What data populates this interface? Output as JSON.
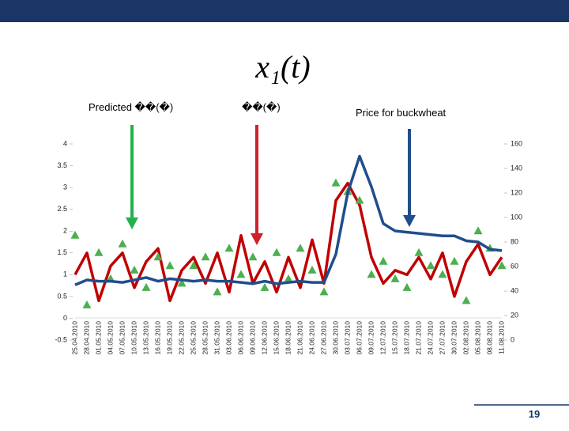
{
  "chart_data": {
    "type": "line",
    "title": "x₁(t)",
    "annotations": [
      "Predicted ��(�)",
      "��(�)",
      "Price for buckwheat"
    ],
    "page_number": "19",
    "categories": [
      "25.04.2010",
      "28.04.2010",
      "01.05.2010",
      "04.05.2010",
      "07.05.2010",
      "10.05.2010",
      "13.05.2010",
      "16.05.2010",
      "19.05.2010",
      "22.05.2010",
      "25.05.2010",
      "28.05.2010",
      "31.05.2010",
      "03.06.2010",
      "06.06.2010",
      "09.06.2010",
      "12.06.2010",
      "15.06.2010",
      "18.06.2010",
      "21.06.2010",
      "24.06.2010",
      "27.06.2010",
      "30.06.2010",
      "03.07.2010",
      "06.07.2010",
      "09.07.2010",
      "12.07.2010",
      "15.07.2010",
      "18.07.2010",
      "21.07.2010",
      "24.07.2010",
      "27.07.2010",
      "30.07.2010",
      "02.08.2010",
      "05.08.2010",
      "08.08.2010",
      "11.08.2010"
    ],
    "series": [
      {
        "name": "x1(t)",
        "color": "#c00000",
        "marker": "line",
        "values": [
          1.0,
          1.5,
          0.4,
          1.2,
          1.5,
          0.7,
          1.3,
          1.6,
          0.4,
          1.1,
          1.4,
          0.8,
          1.5,
          0.6,
          1.9,
          0.8,
          1.3,
          0.6,
          1.4,
          0.7,
          1.8,
          0.8,
          2.7,
          3.1,
          2.6,
          1.4,
          0.8,
          1.1,
          1.0,
          1.4,
          0.9,
          1.5,
          0.5,
          1.3,
          1.7,
          1.0,
          1.4
        ]
      },
      {
        "name": "Predicted x1(t)",
        "color": "#4caf50",
        "marker": "triangle",
        "values": [
          1.9,
          0.3,
          1.5,
          0.9,
          1.7,
          1.1,
          0.7,
          1.4,
          1.2,
          0.8,
          1.2,
          1.4,
          0.6,
          1.6,
          1.0,
          1.4,
          0.7,
          1.5,
          0.9,
          1.6,
          1.1,
          0.6,
          3.1,
          2.9,
          2.7,
          1.0,
          1.3,
          0.9,
          0.7,
          1.5,
          1.2,
          1.0,
          1.3,
          0.4,
          2.0,
          1.6,
          1.2
        ]
      },
      {
        "name": "Price for buckwheat",
        "color": "#1f4e8c",
        "marker": "line",
        "axis": "y2",
        "values": [
          45,
          49,
          48,
          48,
          47,
          49,
          51,
          48,
          50,
          49,
          48,
          49,
          48,
          48,
          47,
          46,
          48,
          46,
          47,
          48,
          47,
          47,
          70,
          120,
          150,
          125,
          95,
          89,
          88,
          87,
          86,
          85,
          85,
          81,
          80,
          74,
          73
        ]
      }
    ],
    "ylim": [
      -0.5,
      4
    ],
    "yticks": [
      -0.5,
      0,
      0.5,
      1,
      1.5,
      2,
      2.5,
      3,
      3.5,
      4
    ],
    "y2lim": [
      0,
      160
    ],
    "y2ticks": [
      0,
      20,
      40,
      60,
      80,
      100,
      120,
      140,
      160
    ]
  }
}
